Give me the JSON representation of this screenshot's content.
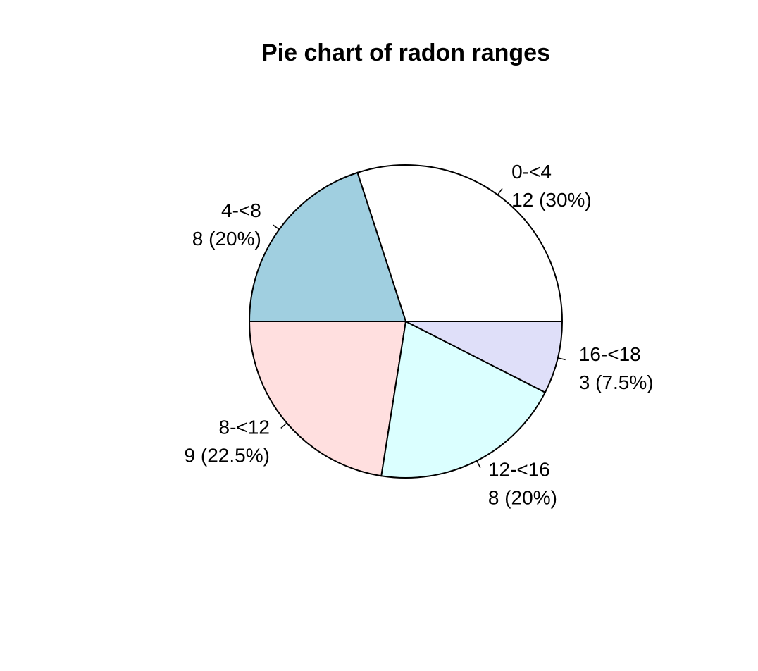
{
  "chart_data": {
    "type": "pie",
    "title": "Pie chart of radon ranges",
    "slices": [
      {
        "category": "0-<4",
        "value_label": "12 (30%)",
        "value": 12,
        "percent": 30,
        "color": "#ffffff"
      },
      {
        "category": "4-<8",
        "value_label": "8 (20%)",
        "value": 8,
        "percent": 20,
        "color": "#a0cfe0"
      },
      {
        "category": "8-<12",
        "value_label": "9 (22.5%)",
        "value": 9,
        "percent": 22.5,
        "color": "#ffdfdf"
      },
      {
        "category": "12-<16",
        "value_label": "8 (20%)",
        "value": 8,
        "percent": 20,
        "color": "#dbffff"
      },
      {
        "category": "16-<18",
        "value_label": "3 (7.5%)",
        "value": 3,
        "percent": 7.5,
        "color": "#dfdff9"
      }
    ],
    "direction": "counterclockwise",
    "start": "right"
  }
}
